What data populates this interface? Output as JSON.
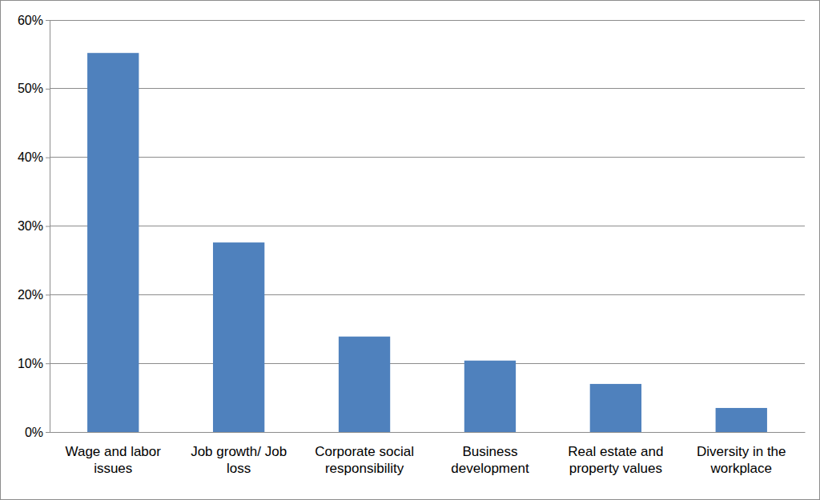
{
  "chart_data": {
    "type": "bar",
    "categories": [
      "Wage and labor issues",
      "Job growth/ Job loss",
      "Corporate social responsibility",
      "Business development",
      "Real estate and property values",
      "Diversity in the workplace"
    ],
    "values": [
      55.2,
      27.6,
      13.9,
      10.4,
      7.0,
      3.5
    ],
    "color": "#4f81bd",
    "ylim": [
      0,
      60
    ],
    "yticks": [
      {
        "value": 0,
        "label": "0%"
      },
      {
        "value": 10,
        "label": "10%"
      },
      {
        "value": 20,
        "label": "20%"
      },
      {
        "value": 30,
        "label": "30%"
      },
      {
        "value": 40,
        "label": "40%"
      },
      {
        "value": 50,
        "label": "50%"
      },
      {
        "value": 60,
        "label": "60%"
      }
    ],
    "grid": true
  }
}
